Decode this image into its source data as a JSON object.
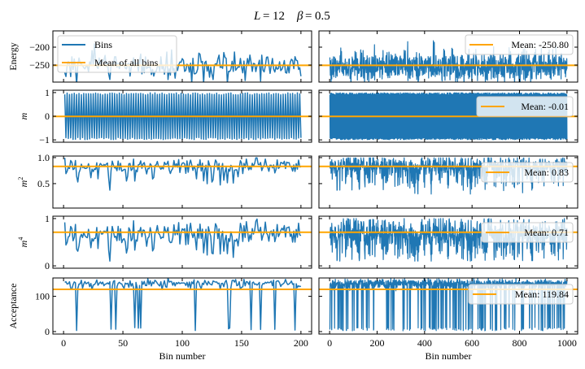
{
  "chart_data": {
    "type": "line",
    "title": "L = 12   β = 0.5",
    "title_parts": {
      "l_sym": "L",
      "l_val": "12",
      "b_sym": "β",
      "b_val": "0.5"
    },
    "colors": {
      "series": "#1f77b4",
      "mean": "#ffa500"
    },
    "left_column": {
      "xlabel": "Bin number",
      "xlim": [
        -9,
        209
      ],
      "xticks": [
        0,
        50,
        100,
        150,
        200
      ],
      "n_bins": 200,
      "legend": {
        "placement": "upper-left",
        "entries": [
          "Bins",
          "Mean of all bins"
        ]
      }
    },
    "right_column": {
      "xlabel": "Bin number",
      "xlim": [
        -45,
        1045
      ],
      "xticks": [
        0,
        200,
        400,
        600,
        800,
        1000
      ],
      "n_bins": 1000
    },
    "rows": [
      {
        "ylabel": "Energy",
        "ylabel_sup": "",
        "ylim": [
          -297.7,
          -154.5
        ],
        "yticks": [
          -200,
          -250
        ],
        "ytick_labels": [
          "−200",
          "−250"
        ],
        "mean": -250.8,
        "mean_label": "Mean: -250.80",
        "kind": "energy"
      },
      {
        "ylabel": "m",
        "ylabel_sup": "",
        "ylim": [
          -1.1,
          1.1
        ],
        "yticks": [
          1,
          0,
          -1
        ],
        "ytick_labels": [
          "1",
          "0",
          "−1"
        ],
        "mean": -0.01,
        "mean_label": "Mean: -0.01",
        "kind": "m"
      },
      {
        "ylabel": "m",
        "ylabel_sup": "2",
        "ylim": [
          0.03,
          1.03
        ],
        "yticks": [
          1.0,
          0.5
        ],
        "ytick_labels": [
          "1.0",
          "0.5"
        ],
        "mean": 0.83,
        "mean_label": "Mean: 0.83",
        "kind": "m2"
      },
      {
        "ylabel": "m",
        "ylabel_sup": "4",
        "ylim": [
          -0.05,
          1.05
        ],
        "yticks": [
          1,
          0
        ],
        "ytick_labels": [
          "1",
          "0"
        ],
        "mean": 0.71,
        "mean_label": "Mean: 0.71",
        "kind": "m4"
      },
      {
        "ylabel": "Acceptance",
        "ylabel_sup": "",
        "ylim": [
          -7,
          152
        ],
        "yticks": [
          100,
          0
        ],
        "ytick_labels": [
          "100",
          "0"
        ],
        "mean": 119.84,
        "mean_label": "Mean: 119.84",
        "kind": "acc"
      }
    ]
  }
}
